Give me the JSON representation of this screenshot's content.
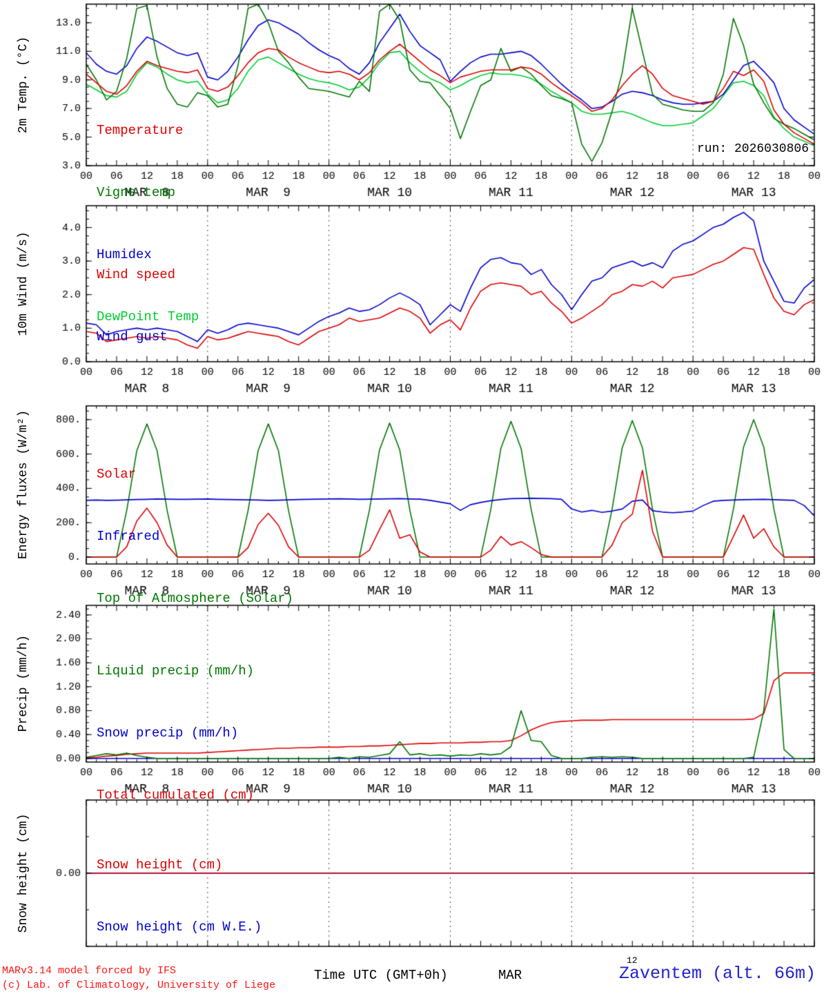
{
  "run_label": "run: 2026030806",
  "colors": {
    "red": "#dd0000",
    "dark_green": "#007700",
    "blue": "#0000cc",
    "light_green": "#00cc33",
    "footer_red": "#ff1111",
    "station_blue": "#2222cc",
    "text": "#000000"
  },
  "x_axis": {
    "xlim": [
      0,
      144
    ],
    "x_step_hours": 2,
    "major_tick_step": 6,
    "minor_tick_step": 2,
    "tick_labels": [
      "00",
      "06",
      "12",
      "18",
      "00",
      "06",
      "12",
      "18",
      "00",
      "06",
      "12",
      "18",
      "00",
      "06",
      "12",
      "18",
      "00",
      "06",
      "12",
      "18",
      "00",
      "06",
      "12",
      "18",
      "00"
    ],
    "day_labels": [
      "MAR  8",
      "MAR  9",
      "MAR 10",
      "MAR 11",
      "MAR 12",
      "MAR 13"
    ],
    "day_label_centers": [
      12,
      36,
      60,
      84,
      108,
      132
    ],
    "day_boundary_lines": [
      24,
      48,
      72,
      96,
      120
    ]
  },
  "chart_data": [
    {
      "type": "line",
      "ylabel": "2m Temp. (°C)",
      "ylim": [
        3,
        14.3
      ],
      "ytick_values": [
        3,
        5,
        7,
        9,
        11,
        13
      ],
      "ytick_labels": [
        "3.0",
        "5.0",
        "7.0",
        "9.0",
        "11.0",
        "13.0"
      ],
      "minor_step": 0.5,
      "show_x_labels": true,
      "series": [
        {
          "name": "Temperature",
          "color": "#dd0000",
          "values": [
            9.4,
            8.8,
            8.2,
            8.0,
            8.6,
            9.6,
            10.3,
            10.0,
            9.8,
            9.6,
            9.5,
            9.7,
            8.4,
            8.2,
            8.5,
            9.3,
            10.2,
            10.9,
            11.2,
            11.1,
            10.6,
            10.2,
            9.9,
            9.6,
            9.5,
            9.6,
            9.4,
            9.0,
            9.5,
            10.4,
            11.0,
            11.5,
            10.9,
            10.3,
            9.7,
            9.3,
            8.8,
            9.2,
            9.4,
            9.6,
            9.7,
            9.7,
            9.7,
            9.9,
            9.8,
            9.4,
            8.8,
            8.3,
            7.9,
            7.4,
            6.8,
            7.0,
            7.6,
            8.6,
            9.4,
            10.0,
            9.4,
            8.4,
            7.9,
            7.7,
            7.5,
            7.3,
            7.5,
            8.4,
            9.6,
            9.3,
            9.7,
            8.9,
            6.9,
            5.9,
            5.3,
            4.9,
            4.5
          ]
        },
        {
          "name": "Vigne temp",
          "color": "#007700",
          "values": [
            10.1,
            9.0,
            7.6,
            8.2,
            10.5,
            14.0,
            14.2,
            10.6,
            8.4,
            7.3,
            7.1,
            8.1,
            7.9,
            7.1,
            7.3,
            10.0,
            14.0,
            14.3,
            13.0,
            11.0,
            10.2,
            9.2,
            8.4,
            8.3,
            8.2,
            8.0,
            7.8,
            8.9,
            8.2,
            13.8,
            14.3,
            13.2,
            9.7,
            8.9,
            8.8,
            7.9,
            7.0,
            4.9,
            6.8,
            8.6,
            9.0,
            11.2,
            9.6,
            9.9,
            9.4,
            8.6,
            7.9,
            7.7,
            7.4,
            4.5,
            3.3,
            4.6,
            6.8,
            9.5,
            14.0,
            11.0,
            8.0,
            7.3,
            7.1,
            6.9,
            6.8,
            6.8,
            7.4,
            9.4,
            13.3,
            11.4,
            8.7,
            7.4,
            6.3,
            5.9,
            5.6,
            5.2,
            4.8
          ]
        },
        {
          "name": "Humidex",
          "color": "#0000cc",
          "values": [
            10.9,
            10.1,
            9.6,
            9.4,
            10.0,
            11.2,
            12.0,
            11.7,
            11.3,
            10.9,
            10.7,
            10.9,
            9.2,
            9.0,
            9.6,
            10.6,
            11.8,
            12.8,
            13.2,
            13.0,
            12.6,
            12.2,
            11.6,
            11.1,
            10.7,
            10.4,
            9.8,
            9.4,
            10.2,
            11.6,
            12.6,
            13.6,
            12.4,
            11.4,
            10.9,
            10.4,
            8.9,
            9.6,
            10.2,
            10.6,
            10.8,
            10.8,
            10.9,
            11.0,
            10.7,
            10.1,
            9.4,
            8.7,
            8.1,
            7.6,
            7.0,
            7.1,
            7.5,
            8.0,
            8.2,
            8.1,
            7.9,
            7.6,
            7.4,
            7.3,
            7.3,
            7.4,
            7.5,
            8.0,
            9.0,
            10.0,
            10.3,
            9.6,
            8.8,
            7.0,
            6.2,
            5.7,
            5.2
          ]
        },
        {
          "name": "DewPoint Temp",
          "color": "#00cc33",
          "values": [
            8.7,
            8.3,
            7.9,
            7.8,
            8.2,
            9.4,
            10.2,
            9.9,
            9.4,
            9.0,
            8.8,
            8.9,
            8.0,
            7.4,
            7.6,
            8.4,
            9.6,
            10.4,
            10.6,
            10.2,
            9.8,
            9.4,
            9.1,
            8.9,
            8.8,
            8.6,
            8.3,
            8.5,
            9.2,
            10.2,
            10.9,
            11.0,
            10.2,
            9.6,
            9.1,
            8.8,
            8.3,
            8.6,
            9.0,
            9.3,
            9.5,
            9.4,
            9.4,
            9.3,
            9.1,
            8.7,
            8.2,
            7.8,
            7.4,
            6.8,
            6.6,
            6.6,
            6.7,
            6.8,
            6.6,
            6.3,
            6.0,
            5.8,
            5.8,
            5.9,
            6.0,
            6.5,
            7.0,
            7.9,
            8.8,
            8.9,
            8.6,
            7.9,
            6.4,
            5.6,
            5.0,
            4.7,
            4.4
          ]
        }
      ]
    },
    {
      "type": "line",
      "ylabel": "10m Wind (m/s)",
      "ylim": [
        0,
        4.65
      ],
      "ytick_values": [
        0,
        1,
        2,
        3,
        4
      ],
      "ytick_labels": [
        "0.0",
        "1.0",
        "2.0",
        "3.0",
        "4.0"
      ],
      "minor_step": 0.25,
      "show_x_labels": true,
      "series": [
        {
          "name": "Wind speed",
          "color": "#dd0000",
          "values": [
            0.9,
            0.85,
            0.6,
            0.65,
            0.7,
            0.75,
            0.7,
            0.75,
            0.7,
            0.65,
            0.5,
            0.4,
            0.75,
            0.65,
            0.7,
            0.8,
            0.9,
            0.85,
            0.8,
            0.75,
            0.6,
            0.5,
            0.7,
            0.9,
            1.0,
            1.1,
            1.3,
            1.2,
            1.25,
            1.3,
            1.45,
            1.6,
            1.5,
            1.3,
            0.85,
            1.1,
            1.25,
            0.95,
            1.6,
            2.1,
            2.3,
            2.35,
            2.3,
            2.25,
            2.0,
            2.1,
            1.75,
            1.5,
            1.15,
            1.3,
            1.5,
            1.7,
            2.0,
            2.1,
            2.3,
            2.25,
            2.4,
            2.2,
            2.5,
            2.55,
            2.6,
            2.75,
            2.9,
            3.0,
            3.2,
            3.4,
            3.35,
            2.6,
            1.9,
            1.5,
            1.4,
            1.7,
            1.85
          ]
        },
        {
          "name": "Wind gust",
          "color": "#0000cc",
          "values": [
            1.15,
            1.1,
            0.8,
            0.9,
            0.95,
            1.0,
            0.95,
            1.0,
            0.95,
            0.9,
            0.75,
            0.6,
            0.95,
            0.85,
            0.95,
            1.1,
            1.15,
            1.1,
            1.05,
            1.0,
            0.9,
            0.8,
            1.0,
            1.2,
            1.35,
            1.45,
            1.6,
            1.5,
            1.55,
            1.7,
            1.9,
            2.05,
            1.9,
            1.7,
            1.1,
            1.4,
            1.7,
            1.5,
            2.2,
            2.8,
            3.05,
            3.1,
            2.95,
            2.9,
            2.6,
            2.75,
            2.3,
            2.0,
            1.55,
            2.0,
            2.4,
            2.5,
            2.8,
            2.9,
            3.0,
            2.85,
            2.95,
            2.8,
            3.3,
            3.5,
            3.6,
            3.8,
            4.0,
            4.1,
            4.3,
            4.45,
            4.2,
            3.0,
            2.4,
            1.8,
            1.75,
            2.2,
            2.45
          ]
        }
      ]
    },
    {
      "type": "line",
      "ylabel": "Energy fluxes (W/m²)",
      "ylim": [
        -40,
        880
      ],
      "ytick_values": [
        0,
        200,
        400,
        600,
        800
      ],
      "ytick_labels": [
        "0.",
        "200.",
        "400.",
        "600.",
        "800."
      ],
      "minor_step": 50,
      "show_x_labels": true,
      "series": [
        {
          "name": "Solar",
          "color": "#dd0000",
          "values": [
            0,
            0,
            0,
            0,
            60,
            210,
            285,
            200,
            70,
            0,
            0,
            0,
            0,
            0,
            0,
            0,
            55,
            190,
            255,
            185,
            60,
            0,
            0,
            0,
            0,
            0,
            0,
            0,
            40,
            160,
            275,
            110,
            130,
            30,
            0,
            0,
            0,
            0,
            0,
            0,
            40,
            120,
            70,
            90,
            55,
            15,
            0,
            0,
            0,
            0,
            0,
            0,
            70,
            200,
            250,
            505,
            150,
            0,
            0,
            0,
            0,
            0,
            0,
            0,
            120,
            245,
            110,
            165,
            60,
            0,
            0,
            0,
            0
          ]
        },
        {
          "name": "Infrared",
          "color": "#0000cc",
          "values": [
            330,
            332,
            330,
            331,
            333,
            335,
            336,
            338,
            337,
            336,
            336,
            337,
            338,
            336,
            335,
            334,
            333,
            332,
            330,
            331,
            333,
            335,
            336,
            337,
            338,
            339,
            338,
            336,
            337,
            338,
            339,
            340,
            338,
            337,
            330,
            320,
            310,
            272,
            305,
            318,
            328,
            335,
            340,
            341,
            342,
            341,
            340,
            336,
            280,
            262,
            272,
            260,
            268,
            280,
            325,
            332,
            270,
            262,
            258,
            262,
            268,
            300,
            325,
            330,
            332,
            334,
            335,
            336,
            334,
            332,
            330,
            300,
            240
          ]
        },
        {
          "name": "Top of Atmosphere (Solar)",
          "color": "#007700",
          "values": [
            0,
            0,
            0,
            0,
            271,
            620,
            775,
            620,
            271,
            0,
            0,
            0,
            0,
            0,
            0,
            0,
            271,
            620,
            775,
            620,
            271,
            0,
            0,
            0,
            0,
            0,
            0,
            0,
            273,
            624,
            780,
            624,
            273,
            0,
            0,
            0,
            0,
            0,
            0,
            0,
            276,
            632,
            790,
            632,
            276,
            0,
            0,
            0,
            0,
            0,
            0,
            0,
            278,
            636,
            795,
            636,
            278,
            0,
            0,
            0,
            0,
            0,
            0,
            0,
            280,
            640,
            800,
            640,
            280,
            0,
            0,
            0,
            0
          ]
        }
      ]
    },
    {
      "type": "line",
      "ylabel": "Precip (mm/h)",
      "ylim": [
        -0.06,
        2.56
      ],
      "ytick_values": [
        0,
        0.4,
        0.8,
        1.2,
        1.6,
        2.0,
        2.4
      ],
      "ytick_labels": [
        "0.00",
        "0.40",
        "0.80",
        "1.20",
        "1.60",
        "2.00",
        "2.40"
      ],
      "minor_step": 0.1,
      "show_x_labels": true,
      "series": [
        {
          "name": "Liquid precip (mm/h)",
          "color": "#007700",
          "values": [
            0.02,
            0.05,
            0.08,
            0.06,
            0.09,
            0.05,
            0.02,
            0,
            0,
            0,
            0,
            0,
            0,
            0,
            0,
            0,
            0,
            0,
            0,
            0,
            0,
            0,
            0,
            0,
            0,
            0.02,
            0,
            0.03,
            0.02,
            0.05,
            0.08,
            0.28,
            0.06,
            0.08,
            0.05,
            0.06,
            0.04,
            0.06,
            0.05,
            0.08,
            0.06,
            0.08,
            0.2,
            0.8,
            0.3,
            0.28,
            0.05,
            0,
            0,
            0,
            0.02,
            0.03,
            0.02,
            0.03,
            0.02,
            0,
            0,
            0,
            0,
            0,
            0,
            0,
            0,
            0,
            0,
            0,
            0.02,
            0.8,
            2.5,
            0.15,
            0,
            0,
            0
          ]
        },
        {
          "name": "Snow precip (mm/h)",
          "color": "#0000cc",
          "const_value": 0
        },
        {
          "name": "Total cumulated (cm)",
          "color": "#dd0000",
          "values": [
            0.01,
            0.02,
            0.04,
            0.05,
            0.07,
            0.08,
            0.09,
            0.09,
            0.09,
            0.09,
            0.09,
            0.09,
            0.1,
            0.11,
            0.12,
            0.13,
            0.14,
            0.15,
            0.16,
            0.17,
            0.17,
            0.18,
            0.18,
            0.19,
            0.19,
            0.19,
            0.2,
            0.2,
            0.21,
            0.21,
            0.22,
            0.23,
            0.24,
            0.25,
            0.25,
            0.26,
            0.26,
            0.26,
            0.27,
            0.27,
            0.28,
            0.28,
            0.3,
            0.38,
            0.48,
            0.55,
            0.6,
            0.62,
            0.63,
            0.64,
            0.64,
            0.64,
            0.65,
            0.65,
            0.65,
            0.65,
            0.65,
            0.65,
            0.65,
            0.65,
            0.65,
            0.65,
            0.65,
            0.65,
            0.65,
            0.65,
            0.66,
            0.75,
            1.3,
            1.43,
            1.43,
            1.43,
            1.43
          ]
        }
      ]
    },
    {
      "type": "line",
      "ylabel": "Snow height (cm)",
      "ylim": [
        -1,
        1
      ],
      "ytick_values": [
        0
      ],
      "ytick_labels": [
        "0.00"
      ],
      "minor_step": 0.5,
      "show_x_labels": false,
      "series": [
        {
          "name": "Snow height (cm)",
          "color": "#dd0000",
          "const_value": 0
        },
        {
          "name": "Snow height (cm W.E.)",
          "color": "#0000cc",
          "const_value": 0
        }
      ]
    }
  ],
  "footer": {
    "credit_line1": "MARv3.14 model forced by IFS",
    "credit_line2": "(c) Lab. of Climatology, University of Liege",
    "time_axis_label": "Time UTC (GMT+0h)",
    "month_label": "MAR",
    "small_tick_label": "12",
    "station_label": "Zaventem (alt. 66m)"
  }
}
